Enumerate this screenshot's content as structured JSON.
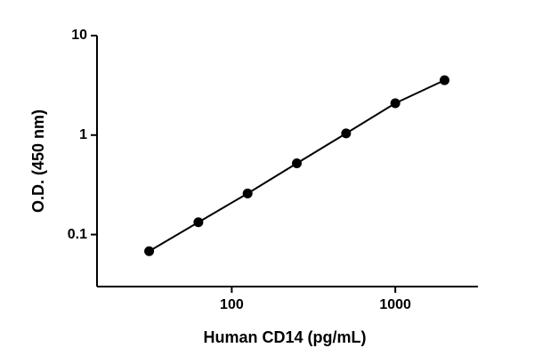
{
  "chart_data": {
    "type": "scatter",
    "x_label": "Human CD14 (pg/mL)",
    "y_label": "O.D. (450 nm)",
    "log_x": true,
    "log_y": true,
    "xlim": [
      15,
      3200
    ],
    "ylim": [
      0.03,
      10
    ],
    "xticks": [
      100,
      1000
    ],
    "yticks": [
      0.1,
      1,
      10
    ],
    "series": [
      {
        "color": "#000000",
        "x": [
          31.25,
          62.5,
          125,
          250,
          500,
          1000,
          2000
        ],
        "values": [
          0.068,
          0.133,
          0.259,
          0.52,
          1.04,
          2.09,
          3.56
        ]
      }
    ]
  }
}
